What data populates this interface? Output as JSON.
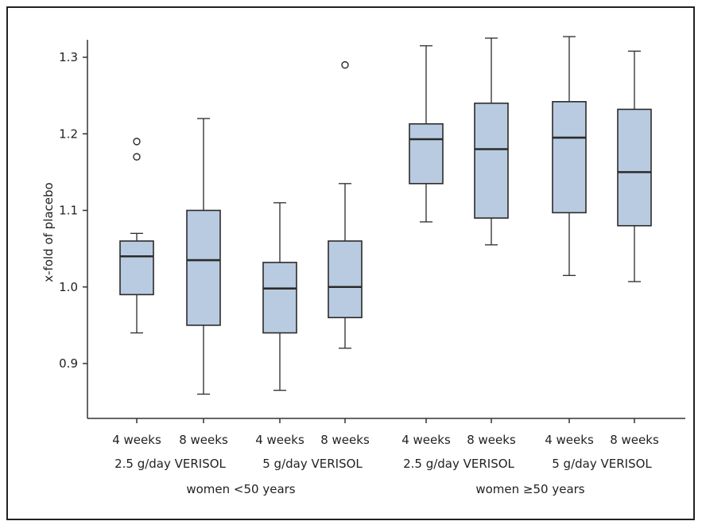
{
  "chart_data": {
    "type": "box",
    "ylabel": "x-fold of placebo",
    "ylim": [
      0.85,
      1.33
    ],
    "yticks": [
      0.9,
      1.0,
      1.1,
      1.2,
      1.3
    ],
    "ytick_labels": [
      "0.9",
      "1.0",
      "1.1",
      "1.2",
      "1.3"
    ],
    "categories": [
      "4 weeks",
      "8 weeks",
      "4 weeks",
      "8 weeks",
      "4 weeks",
      "8 weeks",
      "4 weeks",
      "8 weeks"
    ],
    "dose_groups": [
      {
        "label": "2.5 g/day VERISOL",
        "span": [
          0,
          1
        ]
      },
      {
        "label": "5 g/day VERISOL",
        "span": [
          2,
          3
        ]
      },
      {
        "label": "2.5 g/day VERISOL",
        "span": [
          4,
          5
        ]
      },
      {
        "label": "5 g/day VERISOL",
        "span": [
          6,
          7
        ]
      }
    ],
    "age_groups": [
      {
        "label": "women  <50 years",
        "span": [
          0,
          3
        ]
      },
      {
        "label": "women  ≥50 years",
        "span": [
          4,
          7
        ]
      }
    ],
    "boxes": [
      {
        "whisker_low": 0.94,
        "q1": 0.99,
        "median": 1.04,
        "q3": 1.06,
        "whisker_high": 1.07,
        "outliers": [
          1.17,
          1.19
        ]
      },
      {
        "whisker_low": 0.86,
        "q1": 0.95,
        "median": 1.035,
        "q3": 1.1,
        "whisker_high": 1.22,
        "outliers": []
      },
      {
        "whisker_low": 0.865,
        "q1": 0.94,
        "median": 0.998,
        "q3": 1.032,
        "whisker_high": 1.11,
        "outliers": []
      },
      {
        "whisker_low": 0.92,
        "q1": 0.96,
        "median": 1.0,
        "q3": 1.06,
        "whisker_high": 1.135,
        "outliers": [
          1.29
        ]
      },
      {
        "whisker_low": 1.085,
        "q1": 1.135,
        "median": 1.193,
        "q3": 1.213,
        "whisker_high": 1.315,
        "outliers": []
      },
      {
        "whisker_low": 1.055,
        "q1": 1.09,
        "median": 1.18,
        "q3": 1.24,
        "whisker_high": 1.325,
        "outliers": []
      },
      {
        "whisker_low": 1.015,
        "q1": 1.097,
        "median": 1.195,
        "q3": 1.242,
        "whisker_high": 1.327,
        "outliers": []
      },
      {
        "whisker_low": 1.007,
        "q1": 1.08,
        "median": 1.15,
        "q3": 1.232,
        "whisker_high": 1.308,
        "outliers": []
      }
    ],
    "colors": {
      "box_fill": "#b9cbe0",
      "stroke": "#2b2b2b",
      "axis": "#333333"
    }
  }
}
